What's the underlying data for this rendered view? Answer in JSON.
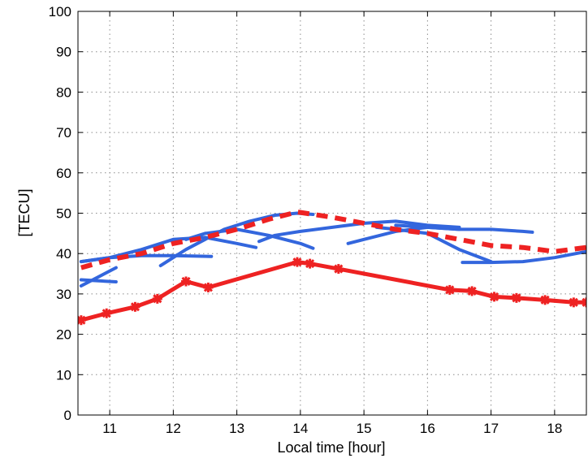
{
  "chart_data": {
    "type": "line",
    "title": "",
    "xlabel": "Local time [hour]",
    "ylabel": "[TECU]",
    "xlim": [
      10.5,
      18.5
    ],
    "ylim": [
      0,
      100
    ],
    "xticks": [
      11,
      12,
      13,
      14,
      15,
      16,
      17,
      18
    ],
    "yticks": [
      0,
      10,
      20,
      30,
      40,
      50,
      60,
      70,
      80,
      90,
      100
    ],
    "grid": true,
    "colors": {
      "blue": "#3366dd",
      "red": "#ee2222"
    },
    "series": [
      {
        "style": "red-solid-markers",
        "x": [
          10.55,
          10.95,
          11.4,
          11.75,
          12.2,
          12.55,
          13.95,
          14.15,
          14.6,
          16.35,
          16.7,
          17.05,
          17.4,
          17.85,
          18.3,
          18.5
        ],
        "y": [
          23.5,
          25.2,
          26.8,
          28.8,
          33.1,
          31.6,
          37.9,
          37.5,
          36.2,
          31.0,
          30.7,
          29.3,
          29.0,
          28.5,
          27.9,
          27.9
        ]
      },
      {
        "style": "red-dashed",
        "x": [
          10.55,
          11.0,
          11.5,
          12.0,
          12.5,
          13.0,
          13.5,
          13.95,
          14.5,
          15.0,
          15.5,
          16.0,
          16.5,
          17.0,
          17.5,
          18.0,
          18.5
        ],
        "y": [
          36.5,
          38.5,
          40.0,
          42.5,
          44.0,
          46.0,
          48.5,
          50.3,
          49.0,
          47.5,
          46.0,
          45.0,
          43.5,
          42.0,
          41.5,
          40.5,
          41.5
        ]
      },
      {
        "style": "blue",
        "x": [
          10.55,
          11.1
        ],
        "y": [
          33.5,
          33.0
        ]
      },
      {
        "style": "blue",
        "x": [
          10.55,
          11.1
        ],
        "y": [
          32.0,
          36.5
        ]
      },
      {
        "style": "blue",
        "x": [
          10.55,
          11.0,
          11.5,
          12.0,
          12.6
        ],
        "y": [
          38.0,
          39.0,
          39.5,
          39.5,
          39.3
        ]
      },
      {
        "style": "blue",
        "x": [
          10.55,
          11.0,
          11.5,
          12.0,
          12.5,
          13.0,
          13.3
        ],
        "y": [
          38.0,
          39.0,
          41.0,
          43.5,
          44.0,
          42.5,
          41.5
        ]
      },
      {
        "style": "blue",
        "x": [
          11.8,
          12.2,
          12.5,
          12.8,
          13.2,
          13.6,
          13.95,
          14.2
        ],
        "y": [
          37.0,
          41.0,
          43.5,
          46.0,
          48.0,
          49.5,
          50.0,
          49.7
        ]
      },
      {
        "style": "blue",
        "x": [
          12.2,
          12.5,
          13.0,
          13.5,
          14.0,
          14.2
        ],
        "y": [
          43.5,
          45.0,
          46.0,
          44.5,
          42.5,
          41.3
        ]
      },
      {
        "style": "blue",
        "x": [
          13.35,
          13.6,
          14.0,
          14.5,
          15.0,
          15.5,
          16.0,
          16.5
        ],
        "y": [
          43.0,
          44.5,
          45.5,
          46.5,
          47.5,
          48.0,
          47.0,
          46.5
        ]
      },
      {
        "style": "blue",
        "x": [
          14.75,
          15.0,
          15.5,
          16.0,
          16.5
        ],
        "y": [
          42.5,
          43.5,
          45.5,
          46.5,
          46.0
        ]
      },
      {
        "style": "blue",
        "x": [
          15.5,
          16.0,
          16.5,
          17.0,
          17.5,
          17.65
        ],
        "y": [
          47.0,
          46.5,
          46.0,
          46.0,
          45.5,
          45.3
        ]
      },
      {
        "style": "blue",
        "x": [
          15.2,
          15.5,
          16.0,
          16.5,
          17.0
        ],
        "y": [
          46.5,
          46.0,
          45.0,
          41.0,
          38.0
        ]
      },
      {
        "style": "blue",
        "x": [
          16.55,
          17.0,
          17.5,
          18.0,
          18.5
        ],
        "y": [
          37.8,
          37.8,
          38.0,
          39.0,
          40.5
        ]
      }
    ]
  }
}
